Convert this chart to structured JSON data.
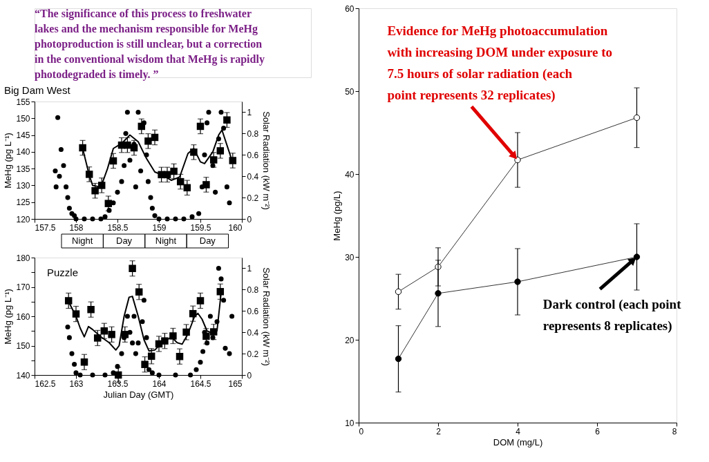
{
  "chart_data": [
    {
      "type": "scatter",
      "title": "Big Dam West",
      "ylabel": "MeHg (pg L⁻¹)",
      "y2label": "Solar Radiation (kW m⁻²)",
      "annotations": [
        "“The significance of this process to freshwater lakes and the mechanism responsible for MeHg photoproduction is still unclear, but a correction in the conventional wisdom that MeHg is rapidly photodegraded is timely. ”",
        "Night",
        "Day",
        "Night",
        "Day"
      ],
      "xlim": [
        157.5,
        160
      ],
      "xticks": [
        157.5,
        158,
        158.5,
        159,
        159.5,
        160
      ],
      "ylim": [
        120,
        155
      ],
      "yticks": [
        120,
        125,
        130,
        135,
        140,
        145,
        150,
        155
      ],
      "y2lim": [
        0,
        1.1
      ],
      "y2ticks": [
        0,
        0.2,
        0.4,
        0.6,
        0.8,
        1
      ],
      "grid": false,
      "series": [
        {
          "type": "scatter",
          "marker": "square",
          "color": "#000000",
          "x": [
            158.08,
            158.16,
            158.23,
            158.31,
            158.39,
            158.45,
            158.55,
            158.62,
            158.7,
            158.79,
            158.87,
            158.95,
            159.03,
            159.1,
            159.18,
            159.26,
            159.34,
            159.42,
            159.5,
            159.57,
            159.66,
            159.74,
            159.82,
            159.89
          ],
          "values": [
            141.2,
            133.3,
            128.4,
            130,
            124.6,
            137.3,
            142,
            142,
            141.2,
            147.6,
            143.2,
            144.3,
            133.2,
            133.2,
            134.2,
            131.1,
            129.3,
            139.9,
            147.6,
            130.2,
            137.6,
            140.3,
            149.5,
            137.4
          ],
          "errors": [
            2.2,
            2.2,
            2.2,
            2.2,
            2.2,
            2.2,
            2.2,
            2.2,
            2.2,
            2.2,
            2.2,
            2.2,
            2.2,
            2.2,
            2.2,
            2.2,
            2.2,
            2.2,
            2.2,
            2.2,
            2.2,
            2.2,
            2.2,
            2.2
          ]
        },
        {
          "type": "line",
          "color": "#000000",
          "x": [
            158.08,
            158.16,
            158.2,
            158.3,
            158.38,
            158.45,
            158.55,
            158.65,
            158.75,
            158.85,
            158.95,
            159.05,
            159.15,
            159.25,
            159.35,
            159.42,
            159.5,
            159.55,
            159.65,
            159.72,
            159.76,
            159.82,
            159.88
          ],
          "values": [
            141,
            133,
            130,
            129.5,
            135,
            141,
            142.5,
            145,
            143,
            138,
            134,
            133,
            131.5,
            132.5,
            139.5,
            141,
            137,
            136.5,
            140,
            145,
            146.5,
            142,
            137.5
          ]
        },
        {
          "type": "scatter",
          "axis": "y2",
          "marker": "circle",
          "color": "#000000",
          "x": [
            157.75,
            157.76,
            157.78,
            157.8,
            157.82,
            157.85,
            157.88,
            157.9,
            157.92,
            157.95,
            157.98,
            158.0,
            158.1,
            158.2,
            158.3,
            158.35,
            158.4,
            158.45,
            158.5,
            158.55,
            158.58,
            158.6,
            158.62,
            158.65,
            158.7,
            158.72,
            158.75,
            158.78,
            158.82,
            158.85,
            158.87,
            158.9,
            158.92,
            158.95,
            159.0,
            159.1,
            159.2,
            159.3,
            159.4,
            159.48,
            159.52,
            159.55,
            159.58,
            159.6,
            159.65,
            159.68,
            159.72,
            159.75,
            159.78,
            159.82,
            159.85
          ],
          "values": [
            0.45,
            0.3,
            0.95,
            0.4,
            0.65,
            0.5,
            0.3,
            0.2,
            0.1,
            0.05,
            0.03,
            0,
            0,
            0,
            0,
            0.02,
            0.08,
            0.15,
            0.25,
            0.35,
            0.5,
            0.8,
            1.0,
            0.55,
            0.7,
            0.3,
            1.0,
            0.45,
            0.9,
            0.6,
            0.35,
            0.2,
            0.1,
            0.03,
            0,
            0,
            0,
            0,
            0.02,
            0.05,
            0.3,
            0.6,
            0.9,
            1.0,
            0.5,
            0.25,
            0.75,
            1.0,
            0.85,
            0.3,
            0.15
          ]
        }
      ]
    },
    {
      "type": "scatter",
      "title": "Puzzle",
      "xlabel": "Julian Day (GMT)",
      "ylabel": "MeHg (pg L⁻¹)",
      "y2label": "Solar Radiation (kW m⁻²)",
      "xlim": [
        162.5,
        165
      ],
      "xticks": [
        162.5,
        163,
        163.5,
        164,
        164.5,
        165
      ],
      "ylim": [
        140,
        180
      ],
      "yticks": [
        140,
        {
          "value": 145,
          "label": null
        },
        150,
        {
          "value": 155,
          "label": null
        },
        160,
        {
          "value": 165,
          "label": null
        },
        170,
        {
          "value": 175,
          "label": null
        },
        180
      ],
      "y2lim": [
        0,
        1.1
      ],
      "y2ticks": [
        0,
        0.2,
        0.4,
        0.6,
        0.8,
        1
      ],
      "grid": false,
      "series": [
        {
          "type": "scatter",
          "marker": "square",
          "color": "#000000",
          "x": [
            162.91,
            163.0,
            163.1,
            163.18,
            163.26,
            163.34,
            163.43,
            163.51,
            163.59,
            163.68,
            163.76,
            163.83,
            163.91,
            164.0,
            164.07,
            164.17,
            164.25,
            164.33,
            164.41,
            164.5,
            164.57,
            164.66,
            164.74
          ],
          "values": [
            165.3,
            160.8,
            144.4,
            162.3,
            152.6,
            155,
            153.8,
            140,
            153.8,
            176.3,
            168.3,
            143.6,
            146.4,
            150.6,
            151.6,
            153.3,
            146.3,
            154.6,
            160.9,
            165.3,
            153.2,
            154.7,
            168.4
          ],
          "errors": [
            2.6,
            2.6,
            2.6,
            2.6,
            2.6,
            2.6,
            2.6,
            2.6,
            2.6,
            2.6,
            2.6,
            2.6,
            2.6,
            2.6,
            2.6,
            2.6,
            2.6,
            2.6,
            2.6,
            2.6,
            2.6,
            2.6,
            2.6
          ]
        },
        {
          "type": "line",
          "color": "#000000",
          "x": [
            162.91,
            163.0,
            163.05,
            163.1,
            163.15,
            163.2,
            163.3,
            163.4,
            163.48,
            163.52,
            163.58,
            163.64,
            163.68,
            163.75,
            163.82,
            163.88,
            163.95,
            164.02,
            164.1,
            164.15,
            164.22,
            164.28,
            164.35,
            164.43,
            164.47,
            164.52,
            164.58,
            164.65,
            164.7,
            164.75
          ],
          "values": [
            165,
            160,
            156,
            153,
            156.5,
            155.5,
            153,
            151,
            148.5,
            150,
            160,
            166.5,
            166.8,
            160,
            152,
            148.2,
            148.5,
            150.5,
            152,
            153,
            151,
            150.5,
            154,
            160,
            161,
            159,
            155,
            154.2,
            155,
            168
          ]
        },
        {
          "type": "scatter",
          "axis": "y2",
          "marker": "circle",
          "color": "#000000",
          "x": [
            162.9,
            162.92,
            162.95,
            162.98,
            163.0,
            163.05,
            163.2,
            163.35,
            163.45,
            163.5,
            163.55,
            163.58,
            163.62,
            163.65,
            163.68,
            163.7,
            163.72,
            163.75,
            163.8,
            163.82,
            163.85,
            163.88,
            163.92,
            164.0,
            164.2,
            164.38,
            164.45,
            164.5,
            164.53,
            164.55,
            164.58,
            164.62,
            164.65,
            164.7,
            164.72,
            164.75,
            164.78,
            164.8,
            164.85,
            164.88
          ],
          "values": [
            0.45,
            0.35,
            0.2,
            0.1,
            0.02,
            0,
            0,
            0,
            0.02,
            0.08,
            0.2,
            0.35,
            0.55,
            0.4,
            0.3,
            0.55,
            0.2,
            0.3,
            0.5,
            0.7,
            0.35,
            0.05,
            0.02,
            0,
            0,
            0,
            0.05,
            0.12,
            0.22,
            0.4,
            0.3,
            0.55,
            0.35,
            0.5,
            1.0,
            0.9,
            0.7,
            0.25,
            0.2,
            0.55
          ]
        }
      ]
    },
    {
      "type": "line",
      "xlabel": "DOM (mg/L)",
      "ylabel": "MeHg (pg/L)",
      "xlim": [
        0,
        8
      ],
      "xticks": [
        0,
        2,
        4,
        6,
        8
      ],
      "ylim": [
        10,
        60
      ],
      "yticks": [
        10,
        20,
        30,
        40,
        50,
        60
      ],
      "grid": false,
      "marker": "circle",
      "annotations": [
        {
          "text": "Evidence for MeHg photoaccumulation with increasing DOM under exposure to 7.5 hours of solar radiation (each point represents 32 replicates)",
          "x": 4,
          "y": 41.7
        },
        {
          "text": "Dark control (each point represents 8 replicates)",
          "x": 7,
          "y": 30
        }
      ],
      "series": [
        {
          "color": "#ffffff",
          "x": [
            1,
            2,
            4,
            7
          ],
          "values": [
            25.8,
            28.8,
            41.7,
            46.8
          ],
          "errors": [
            2.1,
            2.3,
            3.3,
            3.6
          ]
        },
        {
          "color": "#000000",
          "x": [
            1,
            2,
            4,
            7
          ],
          "values": [
            17.7,
            25.6,
            27,
            30
          ],
          "errors": [
            4,
            4,
            4,
            4
          ]
        }
      ]
    }
  ]
}
